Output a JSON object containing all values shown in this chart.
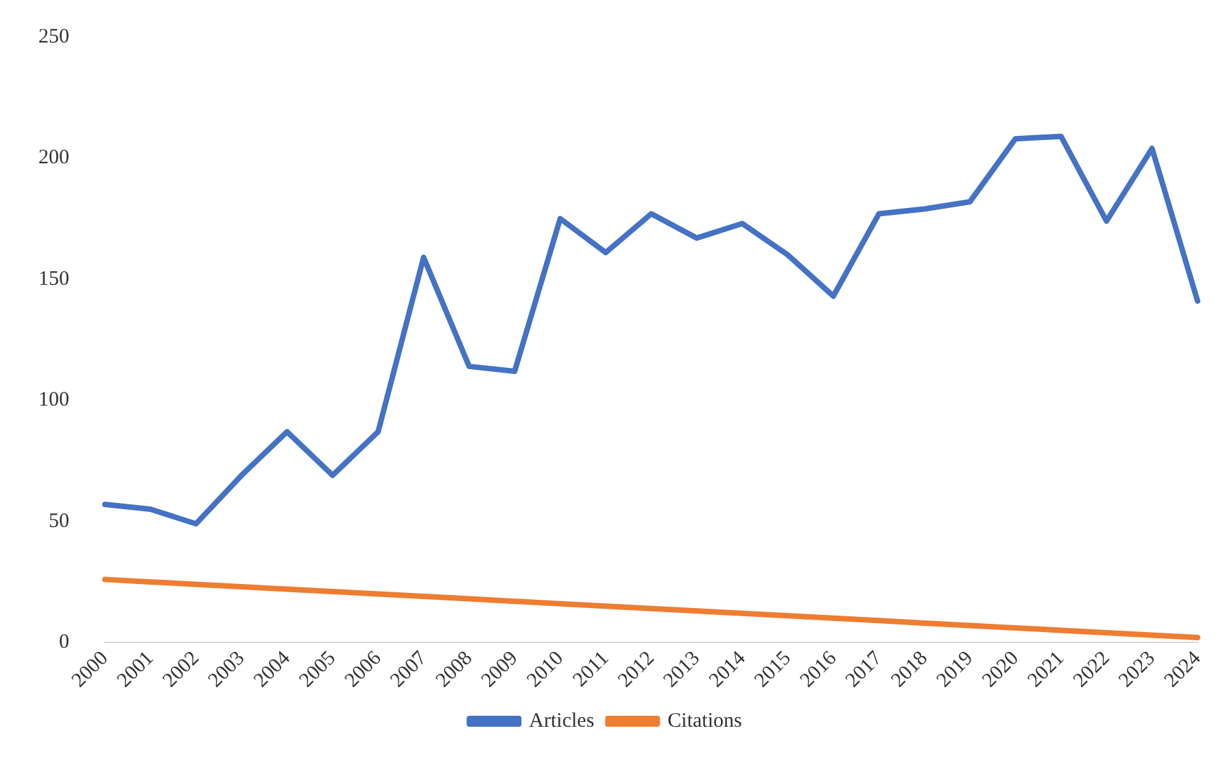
{
  "chart_data": {
    "type": "line",
    "categories": [
      "2000",
      "2001",
      "2002",
      "2003",
      "2004",
      "2005",
      "2006",
      "2007",
      "2008",
      "2009",
      "2010",
      "2011",
      "2012",
      "2013",
      "2014",
      "2015",
      "2016",
      "2017",
      "2018",
      "2019",
      "2020",
      "2021",
      "2022",
      "2023",
      "2024"
    ],
    "series": [
      {
        "name": "Articles",
        "color": "#4472c4",
        "values": [
          57,
          55,
          49,
          69,
          87,
          69,
          87,
          159,
          114,
          112,
          175,
          161,
          177,
          167,
          173,
          160,
          143,
          177,
          179,
          182,
          208,
          209,
          174,
          204,
          141
        ]
      },
      {
        "name": "Citations",
        "color": "#ed7d31",
        "values": [
          26,
          25,
          24,
          23,
          22,
          21,
          20,
          19,
          18,
          17,
          16,
          15,
          14,
          13,
          12,
          11,
          10,
          9,
          8,
          7,
          6,
          5,
          4,
          3,
          2
        ]
      }
    ],
    "ylim": [
      0,
      250
    ],
    "yticks": [
      0,
      50,
      100,
      150,
      200,
      250
    ],
    "grid": false,
    "legend": "bottom",
    "marker": "none",
    "line_style": "solid"
  }
}
